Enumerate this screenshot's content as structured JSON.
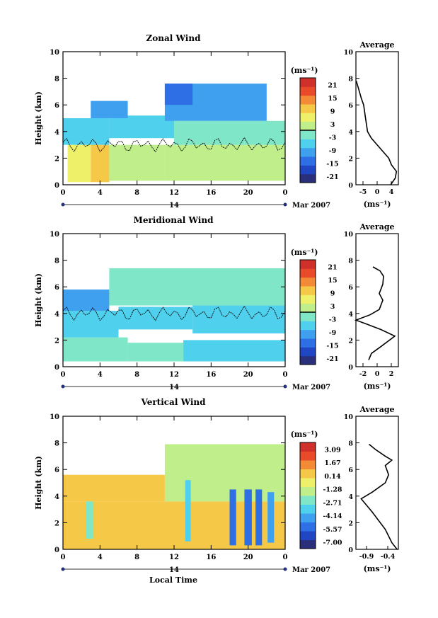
{
  "footer": {
    "xlabel": "Local Time"
  },
  "palette": [
    "#2a2f7c",
    "#2046c4",
    "#2f6fe6",
    "#3fa0f0",
    "#4fd0ec",
    "#7fe6c8",
    "#bfee8a",
    "#eef06a",
    "#f6c848",
    "#f28a36",
    "#e84a2a",
    "#d0302a"
  ],
  "date": {
    "day": "14",
    "month_label": "Mar 2007"
  },
  "chart_data": [
    {
      "type": "heatmap",
      "title": "Zonal Wind",
      "xlabel": "",
      "ylabel": "Height (km)",
      "xlim": [
        0,
        24
      ],
      "ylim": [
        0,
        10
      ],
      "xticks": [
        "0",
        "4",
        "8",
        "12",
        "16",
        "20",
        "0"
      ],
      "yticks": [
        "0",
        "2",
        "4",
        "6",
        "8",
        "10"
      ],
      "colorbar": {
        "unit": "(ms⁻¹)",
        "ticks": [
          "21",
          "15",
          "9",
          "3",
          "-3",
          "-9",
          "-15",
          "-21"
        ],
        "range": [
          -24,
          24
        ]
      },
      "contour_height_km": 3.0,
      "cells": [
        {
          "x": 0.5,
          "w": 2.5,
          "y0": 0.2,
          "y1": 3.0,
          "v": 6
        },
        {
          "x": 3.0,
          "w": 2.0,
          "y0": 0.2,
          "y1": 3.0,
          "v": 9
        },
        {
          "x": 5.0,
          "w": 6.0,
          "y0": 0.3,
          "y1": 3.0,
          "v": 3
        },
        {
          "x": 11.0,
          "w": 13.0,
          "y0": 0.3,
          "y1": 3.0,
          "v": 2
        },
        {
          "x": 0.0,
          "w": 5.0,
          "y0": 3.0,
          "y1": 5.0,
          "v": -6
        },
        {
          "x": 5.0,
          "w": 7.0,
          "y0": 3.5,
          "y1": 5.2,
          "v": -8
        },
        {
          "x": 12.0,
          "w": 12.0,
          "y0": 3.0,
          "y1": 4.8,
          "v": -4
        },
        {
          "x": 3.0,
          "w": 4.0,
          "y0": 5.0,
          "y1": 6.3,
          "v": -12
        },
        {
          "x": 11.0,
          "w": 11.0,
          "y0": 4.8,
          "y1": 7.6,
          "v": -10
        },
        {
          "x": 11.0,
          "w": 3.0,
          "y0": 6.0,
          "y1": 7.6,
          "v": -14
        }
      ],
      "average": {
        "xlabel": "(ms⁻¹)",
        "title": "Average",
        "xlim": [
          -6,
          5
        ],
        "xticks": [
          "-5",
          "0",
          "4"
        ],
        "ylim": [
          0,
          10
        ],
        "yticks": [
          "0",
          "2",
          "4",
          "6",
          "8",
          "10"
        ],
        "x": [
          3.0,
          4.2,
          4.5,
          3.2,
          2.5,
          1.0,
          -0.5,
          -2.0,
          -3.0,
          -3.5,
          -4.0,
          -4.6,
          -5.4,
          -5.9
        ],
        "y": [
          0.0,
          0.5,
          1.0,
          1.5,
          2.0,
          2.5,
          3.0,
          3.5,
          4.0,
          5.0,
          6.0,
          6.5,
          7.3,
          7.8
        ]
      }
    },
    {
      "type": "heatmap",
      "title": "Meridional Wind",
      "xlabel": "",
      "ylabel": "Height (km)",
      "xlim": [
        0,
        24
      ],
      "ylim": [
        0,
        10
      ],
      "xticks": [
        "0",
        "4",
        "8",
        "12",
        "16",
        "20",
        "0"
      ],
      "yticks": [
        "0",
        "2",
        "4",
        "6",
        "8",
        "10"
      ],
      "colorbar": {
        "unit": "(ms⁻¹)",
        "ticks": [
          "21",
          "15",
          "9",
          "3",
          "-3",
          "-9",
          "-15",
          "-21"
        ],
        "range": [
          -24,
          24
        ]
      },
      "contour_height_km": 4.0,
      "cells": [
        {
          "x": 0.0,
          "w": 7.0,
          "y0": 0.4,
          "y1": 2.2,
          "v": -1
        },
        {
          "x": 7.0,
          "w": 6.0,
          "y0": 0.4,
          "y1": 1.8,
          "v": -3
        },
        {
          "x": 13.0,
          "w": 11.0,
          "y0": 0.4,
          "y1": 2.0,
          "v": -6
        },
        {
          "x": 0.0,
          "w": 6.0,
          "y0": 2.2,
          "y1": 4.2,
          "v": -8
        },
        {
          "x": 6.0,
          "w": 8.0,
          "y0": 2.8,
          "y1": 4.5,
          "v": -5
        },
        {
          "x": 14.0,
          "w": 10.0,
          "y0": 2.5,
          "y1": 4.6,
          "v": -7
        },
        {
          "x": 0.0,
          "w": 5.0,
          "y0": 4.2,
          "y1": 5.8,
          "v": -10
        },
        {
          "x": 5.0,
          "w": 19.0,
          "y0": 4.6,
          "y1": 7.4,
          "v": -4
        }
      ],
      "average": {
        "xlabel": "(ms⁻¹)",
        "title": "Average",
        "xlim": [
          -3,
          3
        ],
        "xticks": [
          "-2",
          "0",
          "2"
        ],
        "ylim": [
          0,
          10
        ],
        "yticks": [
          "0",
          "2",
          "4",
          "6",
          "8",
          "10"
        ],
        "x": [
          -1.2,
          -0.8,
          0.5,
          2.5,
          0.5,
          -1.5,
          -3.0,
          -1.0,
          0.3,
          0.8,
          0.3,
          0.8,
          0.9,
          0.4,
          -0.6
        ],
        "y": [
          0.5,
          1.0,
          1.5,
          2.3,
          2.8,
          3.2,
          3.5,
          3.9,
          4.3,
          5.0,
          5.5,
          6.2,
          6.8,
          7.2,
          7.5
        ]
      }
    },
    {
      "type": "heatmap",
      "title": "Vertical Wind",
      "xlabel": "Local Time",
      "ylabel": "Height (km)",
      "xlim": [
        0,
        24
      ],
      "ylim": [
        0,
        10
      ],
      "xticks": [
        "0",
        "4",
        "8",
        "12",
        "16",
        "20",
        "0"
      ],
      "yticks": [
        "0",
        "2",
        "4",
        "6",
        "8",
        "10"
      ],
      "colorbar": {
        "unit": "(ms⁻¹)",
        "ticks": [
          "3.09",
          "1.67",
          "0.14",
          "-1.28",
          "-2.71",
          "-4.14",
          "-5.57",
          "-7.00"
        ],
        "range": [
          -7.7,
          3.8
        ]
      },
      "cells": [
        {
          "x": 0.0,
          "w": 24.0,
          "y0": 0.0,
          "y1": 3.6,
          "v": 0.6
        },
        {
          "x": 0.0,
          "w": 11.0,
          "y0": 3.6,
          "y1": 5.6,
          "v": 0.4
        },
        {
          "x": 11.0,
          "w": 13.0,
          "y0": 3.6,
          "y1": 7.9,
          "v": -1.1
        },
        {
          "x": 2.5,
          "w": 0.8,
          "y0": 0.8,
          "y1": 3.6,
          "v": -2.0
        },
        {
          "x": 13.2,
          "w": 0.6,
          "y0": 0.6,
          "y1": 5.2,
          "v": -3.5
        },
        {
          "x": 18.0,
          "w": 0.7,
          "y0": 0.3,
          "y1": 4.5,
          "v": -5.2
        },
        {
          "x": 19.6,
          "w": 0.8,
          "y0": 0.3,
          "y1": 4.5,
          "v": -5.6
        },
        {
          "x": 20.8,
          "w": 0.7,
          "y0": 0.3,
          "y1": 4.5,
          "v": -5.0
        },
        {
          "x": 22.1,
          "w": 0.7,
          "y0": 0.5,
          "y1": 4.3,
          "v": -4.4
        }
      ],
      "average": {
        "xlabel": "(ms⁻¹)",
        "title": "Average",
        "xlim": [
          -1.0,
          -0.35
        ],
        "xticks": [
          "-0.9",
          "-0.4"
        ],
        "ylim": [
          0,
          10
        ],
        "yticks": [
          "0",
          "2",
          "4",
          "6",
          "8",
          "10"
        ],
        "x": [
          -0.37,
          -0.45,
          -0.55,
          -0.75,
          -0.92,
          -0.75,
          -0.55,
          -0.5,
          -0.55,
          -0.45,
          -0.55,
          -0.7,
          -0.8
        ],
        "y": [
          0.0,
          0.5,
          1.5,
          2.8,
          3.8,
          4.3,
          5.0,
          5.6,
          6.3,
          6.7,
          7.0,
          7.5,
          7.9
        ]
      }
    }
  ]
}
